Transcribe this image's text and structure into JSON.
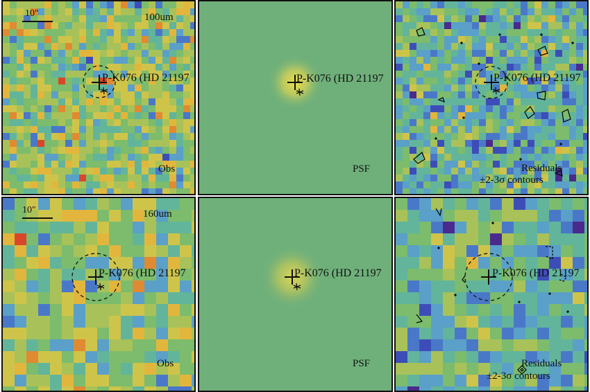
{
  "source": {
    "label": "P-K076 (HD 21197"
  },
  "panels": [
    {
      "scale": "10\"",
      "band": "100um",
      "corner": "Obs"
    },
    {
      "corner": "PSF"
    },
    {
      "corner": "Residuals",
      "sub": "±2-3σ contours"
    },
    {
      "scale": "10\"",
      "band": "160um",
      "corner": "Obs"
    },
    {
      "corner": "PSF"
    },
    {
      "corner": "Residuals",
      "sub": "±2-3σ contours"
    }
  ],
  "colors": {
    "psf_background": "#6fb07a",
    "frame": "#111111",
    "contour": "#000000"
  }
}
